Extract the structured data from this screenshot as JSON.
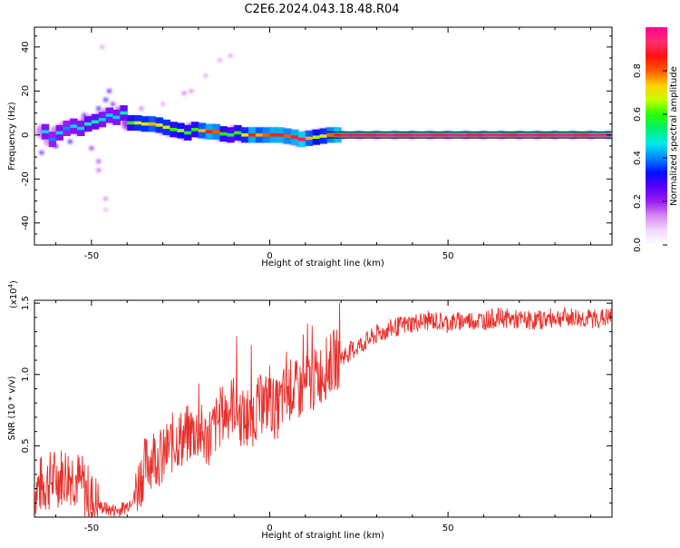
{
  "figure": {
    "title": "C2E6.2024.043.18.48.R04"
  },
  "chart_data": [
    {
      "type": "heatmap",
      "xlabel": "Height of straight line (km)",
      "ylabel": "Frequency (Hz)",
      "xlim": [
        -66,
        96
      ],
      "ylim": [
        -50,
        49
      ],
      "xticks": [
        -50,
        0,
        50
      ],
      "yticks": [
        -40,
        -20,
        0,
        20,
        40
      ],
      "tick_labels_x": [
        "-50",
        "0",
        "50"
      ],
      "tick_labels_y": [
        "-40",
        "-20",
        "0",
        "20",
        "40"
      ],
      "ridge": [
        {
          "x": -64,
          "y": 1.5,
          "a": 0.45
        },
        {
          "x": -62,
          "y": -2.0,
          "a": 0.4
        },
        {
          "x": -60,
          "y": 1.0,
          "a": 0.45
        },
        {
          "x": -58,
          "y": 3.0,
          "a": 0.4
        },
        {
          "x": -56,
          "y": 4.0,
          "a": 0.45
        },
        {
          "x": -54,
          "y": 3.0,
          "a": 0.45
        },
        {
          "x": -52,
          "y": 5.0,
          "a": 0.5
        },
        {
          "x": -50,
          "y": 6.0,
          "a": 0.5
        },
        {
          "x": -48,
          "y": 7.0,
          "a": 0.45
        },
        {
          "x": -46,
          "y": 9.0,
          "a": 0.45
        },
        {
          "x": -44,
          "y": 8.0,
          "a": 0.45
        },
        {
          "x": -42,
          "y": 10.0,
          "a": 0.5
        },
        {
          "x": -40,
          "y": 5.5,
          "a": 0.6
        },
        {
          "x": -38,
          "y": 5.5,
          "a": 0.7
        },
        {
          "x": -36,
          "y": 5.0,
          "a": 0.7
        },
        {
          "x": -34,
          "y": 5.0,
          "a": 0.75
        },
        {
          "x": -32,
          "y": 4.5,
          "a": 0.7
        },
        {
          "x": -30,
          "y": 3.5,
          "a": 0.7
        },
        {
          "x": -28,
          "y": 2.5,
          "a": 0.6
        },
        {
          "x": -26,
          "y": 2.0,
          "a": 0.65
        },
        {
          "x": -24,
          "y": 1.0,
          "a": 0.6
        },
        {
          "x": -22,
          "y": 2.5,
          "a": 0.6
        },
        {
          "x": -20,
          "y": 2.0,
          "a": 0.75
        },
        {
          "x": -18,
          "y": 1.5,
          "a": 0.85
        },
        {
          "x": -16,
          "y": 1.5,
          "a": 0.8
        },
        {
          "x": -14,
          "y": 0.5,
          "a": 0.6
        },
        {
          "x": -12,
          "y": 0.0,
          "a": 0.55
        },
        {
          "x": -10,
          "y": 1.0,
          "a": 0.6
        },
        {
          "x": -8,
          "y": 0.0,
          "a": 0.7
        },
        {
          "x": -6,
          "y": 0.0,
          "a": 0.85
        },
        {
          "x": -4,
          "y": 0.0,
          "a": 0.75
        },
        {
          "x": -2,
          "y": 0.0,
          "a": 0.8
        },
        {
          "x": 0,
          "y": 0.0,
          "a": 0.85
        },
        {
          "x": 2,
          "y": 0.0,
          "a": 0.85
        },
        {
          "x": 4,
          "y": -0.5,
          "a": 0.8
        },
        {
          "x": 6,
          "y": -1.0,
          "a": 0.85
        },
        {
          "x": 8,
          "y": -2.0,
          "a": 0.9
        },
        {
          "x": 10,
          "y": -1.5,
          "a": 0.75
        },
        {
          "x": 12,
          "y": -1.0,
          "a": 0.65
        },
        {
          "x": 14,
          "y": -0.5,
          "a": 0.7
        },
        {
          "x": 16,
          "y": 0.0,
          "a": 0.8
        },
        {
          "x": 18,
          "y": 0.0,
          "a": 0.88
        },
        {
          "x": 20,
          "y": 0.0,
          "a": 0.9
        },
        {
          "x": 25,
          "y": 0.0,
          "a": 0.9
        },
        {
          "x": 30,
          "y": 0.0,
          "a": 0.92
        },
        {
          "x": 35,
          "y": 0.0,
          "a": 0.9
        },
        {
          "x": 40,
          "y": 0.0,
          "a": 0.92
        },
        {
          "x": 45,
          "y": 0.0,
          "a": 0.9
        },
        {
          "x": 50,
          "y": 0.0,
          "a": 0.92
        },
        {
          "x": 55,
          "y": 0.0,
          "a": 0.9
        },
        {
          "x": 60,
          "y": 0.0,
          "a": 0.92
        },
        {
          "x": 65,
          "y": 0.0,
          "a": 0.9
        },
        {
          "x": 70,
          "y": 0.0,
          "a": 0.92
        },
        {
          "x": 75,
          "y": 0.0,
          "a": 0.9
        },
        {
          "x": 80,
          "y": 0.0,
          "a": 0.92
        },
        {
          "x": 85,
          "y": 0.0,
          "a": 0.9
        },
        {
          "x": 90,
          "y": 0.0,
          "a": 0.92
        },
        {
          "x": 95,
          "y": 0.0,
          "a": 0.92
        }
      ],
      "scatter": [
        {
          "x": -47,
          "y": 40.0,
          "a": 0.12
        },
        {
          "x": -45,
          "y": 20.0,
          "a": 0.25
        },
        {
          "x": -46,
          "y": 16.0,
          "a": 0.3
        },
        {
          "x": -48,
          "y": 12.0,
          "a": 0.3
        },
        {
          "x": -44,
          "y": 14.0,
          "a": 0.22
        },
        {
          "x": -50,
          "y": -6.0,
          "a": 0.2
        },
        {
          "x": -48,
          "y": -12.0,
          "a": 0.18
        },
        {
          "x": -48,
          "y": -16.0,
          "a": 0.16
        },
        {
          "x": -46,
          "y": -29.0,
          "a": 0.14
        },
        {
          "x": -46,
          "y": -34.0,
          "a": 0.1
        },
        {
          "x": -18,
          "y": 27.0,
          "a": 0.12
        },
        {
          "x": -14,
          "y": 34.0,
          "a": 0.12
        },
        {
          "x": -11,
          "y": 36.0,
          "a": 0.12
        },
        {
          "x": -24,
          "y": 19.0,
          "a": 0.15
        },
        {
          "x": -22,
          "y": 20.0,
          "a": 0.14
        },
        {
          "x": -30,
          "y": 14.0,
          "a": 0.12
        },
        {
          "x": -36,
          "y": 12.0,
          "a": 0.15
        },
        {
          "x": -52,
          "y": 9.0,
          "a": 0.25
        },
        {
          "x": -60,
          "y": -5.0,
          "a": 0.3
        },
        {
          "x": -64,
          "y": -8.0,
          "a": 0.25
        },
        {
          "x": -56,
          "y": -3.0,
          "a": 0.3
        }
      ]
    },
    {
      "type": "line",
      "xlabel": "Height of straight line (km)",
      "ylabel": "SNR (10 * v/v)",
      "y_multiplier": "(x10",
      "y_multiplier_exp": "4",
      "y_multiplier_close": ")",
      "xlim": [
        -66,
        96
      ],
      "ylim": [
        0,
        1.52
      ],
      "xticks": [
        -50,
        0,
        50
      ],
      "yticks": [
        0.5,
        1.0,
        1.5
      ],
      "tick_labels_x": [
        "-50",
        "0",
        "50"
      ],
      "tick_labels_y": [
        "0.5",
        "1.0",
        "1.5"
      ],
      "series_color": "#e8302c",
      "series": [
        {
          "x": [
            -66,
            -62,
            -58,
            -55,
            -52,
            -50,
            -48,
            -45,
            -42,
            -40,
            -38,
            -36,
            -34,
            -32,
            -30,
            -28,
            -26,
            -24,
            -22,
            -20,
            -18,
            -16,
            -14,
            -12,
            -10,
            -8,
            -6,
            -4,
            -2,
            0,
            2,
            4,
            6,
            8,
            10,
            12,
            14,
            16,
            18,
            20,
            25,
            30,
            35,
            40,
            45,
            50,
            55,
            60,
            65,
            70,
            75,
            80,
            85,
            90,
            96
          ],
          "y": [
            0.2,
            0.25,
            0.3,
            0.3,
            0.2,
            0.12,
            0.08,
            0.05,
            0.05,
            0.08,
            0.15,
            0.3,
            0.4,
            0.45,
            0.4,
            0.5,
            0.55,
            0.55,
            0.6,
            0.6,
            0.55,
            0.6,
            0.7,
            0.75,
            0.8,
            0.7,
            0.65,
            0.75,
            0.8,
            0.8,
            0.75,
            0.85,
            0.9,
            0.88,
            0.92,
            0.95,
            1.0,
            1.05,
            1.1,
            1.12,
            1.2,
            1.28,
            1.33,
            1.36,
            1.38,
            1.36,
            1.38,
            1.38,
            1.4,
            1.38,
            1.38,
            1.4,
            1.4,
            1.39,
            1.4
          ]
        }
      ]
    }
  ],
  "colorbar": {
    "label": "Normalized spectral amplitude",
    "range": [
      0,
      1
    ],
    "ticks": [
      0.0,
      0.2,
      0.4,
      0.6,
      0.8
    ],
    "tick_labels": [
      "0.0",
      "0.2",
      "0.4",
      "0.6",
      "0.8"
    ],
    "stops": [
      "#ffffff",
      "#f2d8ff",
      "#d88af0",
      "#9a1cf2",
      "#5a00ff",
      "#0010ff",
      "#0088ff",
      "#00eaea",
      "#00f070",
      "#28ff00",
      "#c8ff00",
      "#ffd000",
      "#ff5a00",
      "#ff1010",
      "#ff2e6e",
      "#ff0090"
    ]
  }
}
